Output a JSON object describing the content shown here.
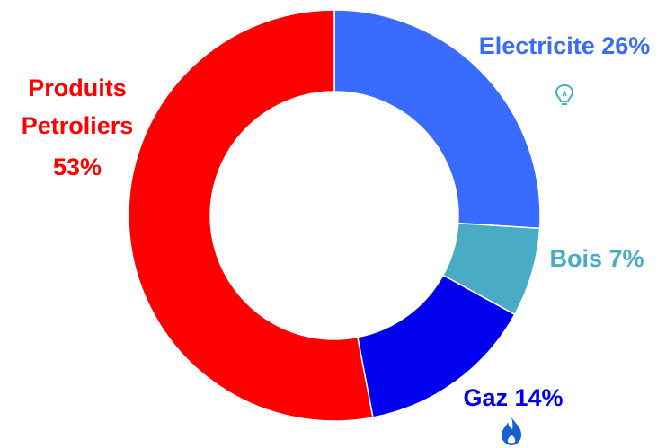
{
  "chart_data": {
    "type": "pie",
    "variant": "donut",
    "title": "",
    "slices": [
      {
        "name": "Electricite",
        "value": 26,
        "pct_label": "26%",
        "color": "#3a6bff",
        "label_color": "#3a6bff",
        "icon": "lightbulb-icon"
      },
      {
        "name": "Bois",
        "value": 7,
        "pct_label": "7%",
        "color": "#4aabc6",
        "label_color": "#4aabc6",
        "icon": ""
      },
      {
        "name": "Gaz",
        "value": 14,
        "pct_label": "14%",
        "color": "#0000ee",
        "label_color": "#0000ee",
        "icon": "flame-icon"
      },
      {
        "name": "Produits Petroliers",
        "value": 53,
        "pct_label": "53%",
        "color": "#ff0000",
        "label_color": "#ff0000",
        "icon": ""
      }
    ],
    "labels": {
      "electricite": "Electricite 26%",
      "bois": "Bois 7%",
      "gaz": "Gaz 14%",
      "petrole_line1": "Produits",
      "petrole_line2": "Petroliers",
      "petrole_line3": "53%"
    },
    "legend": "none"
  }
}
